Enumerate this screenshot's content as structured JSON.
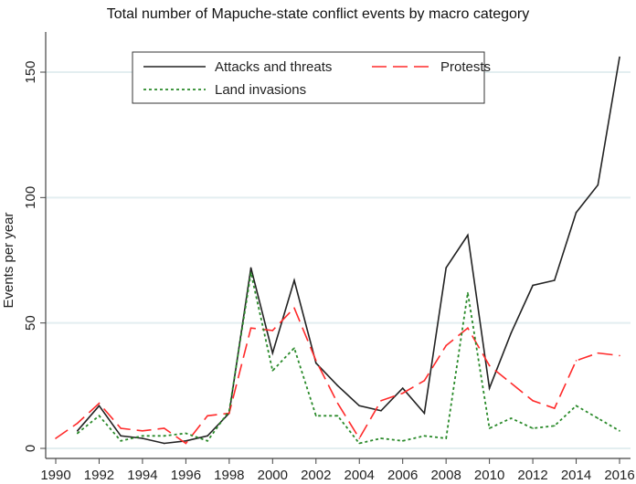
{
  "chart_data": {
    "type": "line",
    "title": "Total number of Mapuche-state conflict events by macro category",
    "xlabel": "",
    "ylabel": "Events per year",
    "xlim": [
      1990,
      2016
    ],
    "ylim": [
      0,
      160
    ],
    "xticks": [
      1990,
      1992,
      1994,
      1996,
      1998,
      2000,
      2002,
      2004,
      2006,
      2008,
      2010,
      2012,
      2014,
      2016
    ],
    "yticks": [
      0,
      50,
      100,
      150
    ],
    "grid": true,
    "legend_position": "top",
    "series": [
      {
        "name": "Attacks and threats",
        "color": "#222222",
        "dash": "solid",
        "x": [
          1991,
          1992,
          1993,
          1994,
          1995,
          1996,
          1997,
          1998,
          1999,
          2000,
          2001,
          2002,
          2003,
          2004,
          2005,
          2006,
          2007,
          2008,
          2009,
          2010,
          2011,
          2012,
          2013,
          2014,
          2015,
          2016
        ],
        "y": [
          7,
          17,
          5,
          4,
          2,
          3,
          5,
          14,
          72,
          38,
          67,
          34,
          25,
          17,
          15,
          24,
          14,
          72,
          85,
          24,
          46,
          65,
          67,
          94,
          105,
          156
        ]
      },
      {
        "name": "Protests",
        "color": "#ff2a2a",
        "dash": "long-dash",
        "x": [
          1990,
          1991,
          1992,
          1993,
          1994,
          1995,
          1996,
          1997,
          1998,
          1999,
          2000,
          2001,
          2002,
          2003,
          2004,
          2005,
          2006,
          2007,
          2008,
          2009,
          2010,
          2011,
          2012,
          2013,
          2014,
          2015,
          2016
        ],
        "y": [
          4,
          10,
          18,
          8,
          7,
          8,
          2,
          13,
          14,
          48,
          47,
          56,
          35,
          18,
          4,
          19,
          22,
          27,
          41,
          48,
          33,
          26,
          19,
          16,
          35,
          38,
          37
        ]
      },
      {
        "name": "Land invasions",
        "color": "#2a8a2a",
        "dash": "dotted",
        "x": [
          1991,
          1992,
          1993,
          1994,
          1995,
          1996,
          1997,
          1998,
          1999,
          2000,
          2001,
          2002,
          2003,
          2004,
          2005,
          2006,
          2007,
          2008,
          2009,
          2010,
          2011,
          2012,
          2013,
          2014,
          2015,
          2016
        ],
        "y": [
          6,
          13,
          3,
          5,
          5,
          6,
          3,
          15,
          70,
          31,
          40,
          13,
          13,
          2,
          4,
          3,
          5,
          4,
          62,
          8,
          12,
          8,
          9,
          17,
          12,
          7
        ]
      }
    ]
  }
}
